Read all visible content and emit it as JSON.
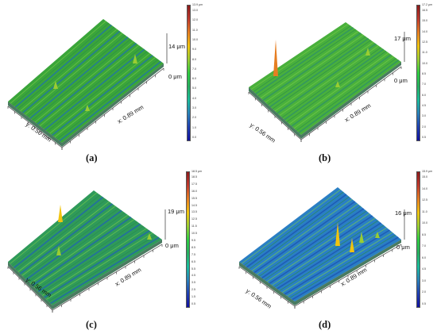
{
  "panels": [
    {
      "caption": "(a)",
      "z_max": "14 μm",
      "z_zero": "0 μm",
      "x_axis": "x: 0.89 mm",
      "y_axis": "y: 0.56 mm",
      "colorbar_top": "13.9 μm",
      "colorbar_ticks": [
        "13.0",
        "12.0",
        "11.0",
        "10.0",
        "9.0",
        "8.0",
        "7.0",
        "6.0",
        "5.0",
        "4.0",
        "3.0",
        "2.0",
        "1.0",
        "0.0"
      ],
      "surface_base": "#3aa53a",
      "stripe_color": "#1f6fb0"
    },
    {
      "caption": "(b)",
      "z_max": "17 μm",
      "z_zero": "0 μm",
      "x_axis": "x: 0.89 mm",
      "y_axis": "y: 0.56 mm",
      "colorbar_top": "17.2 μm",
      "colorbar_ticks": [
        "16.5",
        "15.0",
        "14.0",
        "12.5",
        "11.0",
        "10.0",
        "8.5",
        "7.0",
        "6.0",
        "4.5",
        "3.0",
        "2.0",
        "0.5"
      ],
      "surface_base": "#49b03c",
      "stripe_color": "#2d8f6a"
    },
    {
      "caption": "(c)",
      "z_max": "19 μm",
      "z_zero": "0 μm",
      "x_axis": "x: 0.89 mm",
      "y_axis": "y: 0.56 mm",
      "colorbar_top": "18.5 μm",
      "colorbar_ticks": [
        "18.5",
        "17.5",
        "16.0",
        "15.5",
        "14.5",
        "13.5",
        "12.5",
        "11.5",
        "10.5",
        "9.5",
        "8.5",
        "7.5",
        "6.5",
        "5.5",
        "4.5",
        "3.5",
        "2.5",
        "1.5",
        "0.5"
      ],
      "surface_base": "#2f9a5a",
      "stripe_color": "#1f5fb8"
    },
    {
      "caption": "(d)",
      "z_max": "16 μm",
      "z_zero": "0 μm",
      "x_axis": "x: 0.89 mm",
      "y_axis": "y: 0.56 mm",
      "colorbar_top": "15.9 μm",
      "colorbar_ticks": [
        "15.0",
        "14.0",
        "12.5",
        "11.0",
        "10.0",
        "8.5",
        "7.0",
        "6.0",
        "4.5",
        "3.0",
        "2.0",
        "0.5"
      ],
      "surface_base": "#2a7fc4",
      "stripe_color": "#1a4fb5"
    }
  ],
  "colormap": [
    "#8b1a1a",
    "#c0392b",
    "#e67e22",
    "#f1c40f",
    "#9acd32",
    "#2ecc40",
    "#27ae60",
    "#1abc9c",
    "#2980b9",
    "#1f3fb0",
    "#1010a0"
  ]
}
